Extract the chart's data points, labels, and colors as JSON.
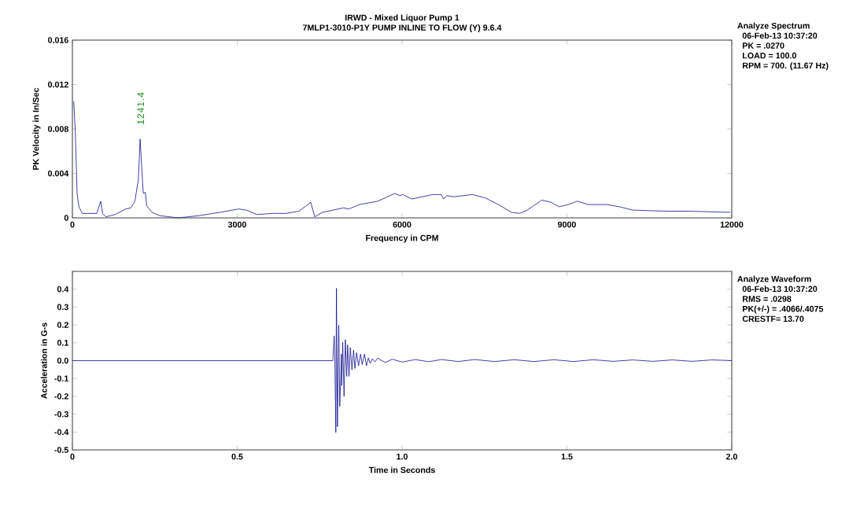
{
  "chart_data": [
    {
      "type": "line",
      "title": "IRWD - Mixed Liquor Pump 1",
      "subtitle": "7MLP1-3010-P1Y    PUMP INLINE TO FLOW (Y) 9.6.4",
      "xlabel": "Frequency in CPM",
      "ylabel": "PK Velocity in In/Sec",
      "color": "#101090",
      "marker": "none",
      "x": [
        24,
        53,
        86,
        119,
        181,
        301,
        444,
        516,
        549,
        611,
        779,
        970,
        1065,
        1137,
        1199,
        1233,
        1256,
        1290,
        1328,
        1352,
        1447,
        1591,
        1925,
        2307,
        2690,
        3024,
        3167,
        3358,
        3645,
        3884,
        4123,
        4338,
        4410,
        4553,
        4935,
        5031,
        5223,
        5557,
        5868,
        5963,
        6011,
        6179,
        6561,
        6714,
        6752,
        6810,
        6944,
        7278,
        7512,
        7752,
        7992,
        8136,
        8280,
        8544,
        8712,
        8856,
        9024,
        9192,
        9384,
        9720,
        9960,
        10200,
        10824,
        11208,
        11976
      ],
      "values": [
        0.0105,
        0.0078,
        0.0022,
        0.001,
        0.0004,
        0.0004,
        0.0004,
        0.0015,
        0.0004,
        0.0001,
        0.0003,
        0.0008,
        0.0009,
        0.0015,
        0.0034,
        0.0071,
        0.005,
        0.0022,
        0.0023,
        0.0011,
        0.0005,
        0.0002,
        0.0,
        0.0002,
        0.0005,
        0.0008,
        0.0007,
        0.0003,
        0.0004,
        0.0004,
        0.0006,
        0.0014,
        0.0001,
        0.0005,
        0.0009,
        0.0008,
        0.0012,
        0.0015,
        0.0022,
        0.002,
        0.0021,
        0.0017,
        0.0021,
        0.0021,
        0.0017,
        0.002,
        0.0019,
        0.0021,
        0.0018,
        0.0012,
        0.0005,
        0.0004,
        0.0007,
        0.0016,
        0.0014,
        0.001,
        0.0012,
        0.0015,
        0.0012,
        0.0012,
        0.001,
        0.0007,
        0.0006,
        0.0006,
        0.0005
      ],
      "xlim": [
        0,
        12000
      ],
      "ylim": [
        0,
        0.016
      ],
      "xticks": [
        0,
        3000,
        6000,
        9000,
        12000
      ],
      "yticks": [
        0,
        0.004,
        0.008,
        0.012,
        0.016
      ],
      "annotations": [
        {
          "text": "1241.4",
          "x": 1241.4,
          "y": 0.0071
        },
        "Analyze Spectrum",
        "06-Feb-13  10:37:20",
        "PK  =  .0270",
        "LOAD = 100.0",
        "RPM = 700. (11.67 Hz)"
      ]
    },
    {
      "type": "line",
      "xlabel": "Time in Seconds",
      "ylabel": "Acceleration in G-s",
      "color": "#101090",
      "marker": "none",
      "x": [
        0,
        0.79,
        0.794,
        0.796,
        0.799,
        0.801,
        0.804,
        0.808,
        0.811,
        0.816,
        0.817,
        0.82,
        0.824,
        0.828,
        0.832,
        0.835,
        0.839,
        0.843,
        0.848,
        0.853,
        0.857,
        0.862,
        0.868,
        0.874,
        0.879,
        0.886,
        0.892,
        0.898,
        0.903,
        0.91,
        0.918,
        0.926,
        0.938,
        0.95,
        0.97,
        1.0,
        1.04,
        1.08,
        1.12,
        1.17,
        1.22,
        1.28,
        1.34,
        1.4,
        1.46,
        1.52,
        1.58,
        1.64,
        1.7,
        1.76,
        1.82,
        1.88,
        1.94,
        2.0
      ],
      "values": [
        0,
        0,
        0.139,
        0.022,
        -0.402,
        0.405,
        -0.37,
        0.198,
        -0.256,
        0.037,
        -0.139,
        0.102,
        -0.2,
        0.117,
        -0.088,
        0.088,
        -0.088,
        0.073,
        -0.051,
        0.059,
        -0.044,
        0.044,
        -0.029,
        0.037,
        -0.022,
        0.037,
        -0.029,
        0.015,
        -0.015,
        0.01,
        -0.007,
        0.015,
        0,
        -0.01,
        0.008,
        -0.008,
        0.006,
        -0.006,
        0.006,
        -0.005,
        0.006,
        -0.005,
        0.005,
        -0.005,
        0.005,
        -0.005,
        0.005,
        -0.004,
        0.004,
        -0.004,
        0.004,
        -0.004,
        0.004,
        0
      ],
      "xlim": [
        0,
        2
      ],
      "ylim": [
        -0.5,
        0.5
      ],
      "xticks": [
        0,
        0.5,
        {
          "value": 1,
          "label": "1.0"
        },
        1.5,
        {
          "value": 2,
          "label": "2.0"
        }
      ],
      "yticks": [
        -0.5,
        -0.4,
        -0.3,
        -0.2,
        -0.1,
        {
          "value": 0,
          "label": "0.0"
        },
        0.1,
        0.2,
        0.3,
        0.4
      ],
      "annotations": [
        "Analyze Waveform",
        "06-Feb-13  10:37:20",
        "RMS = .0298",
        "PK(+/-) = .4066/.4075",
        "CRESTF= 13.70"
      ]
    }
  ]
}
